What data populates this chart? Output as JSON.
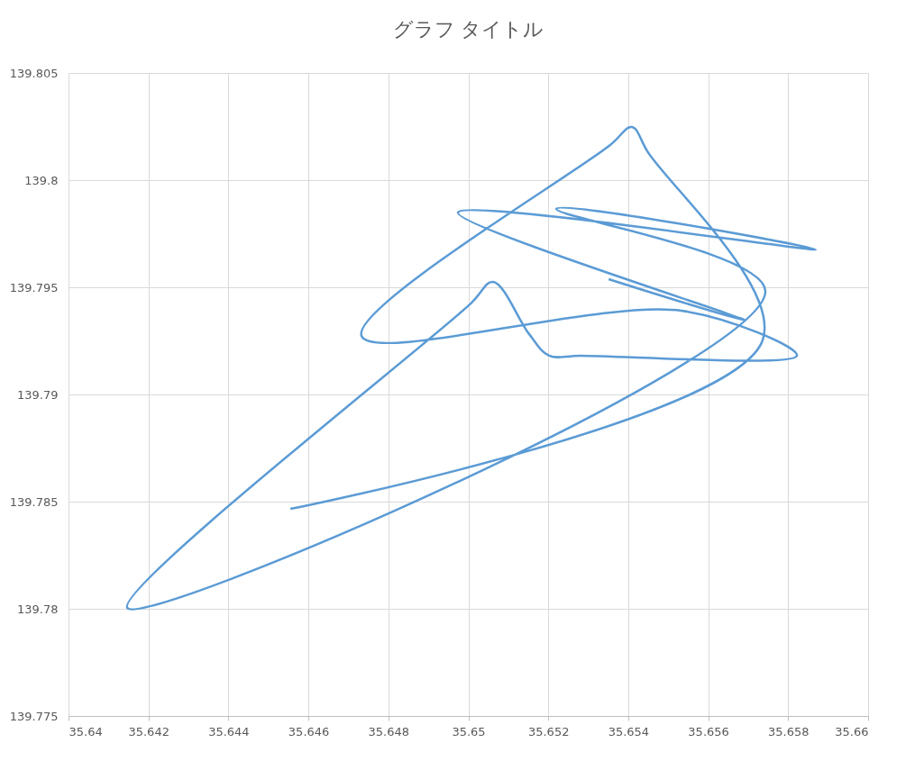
{
  "chart_data": {
    "type": "line",
    "title": "グラフ タイトル",
    "x": [
      35.64555,
      35.65736,
      35.65448,
      35.65409,
      35.65355,
      35.64733,
      35.65533,
      35.65822,
      35.65281,
      35.65202,
      35.65152,
      35.65062,
      35.65006,
      35.64147,
      35.65743,
      35.6522,
      35.65869,
      35.64974,
      35.65693,
      35.65351
    ],
    "series": [
      {
        "color": "#5b9bd5",
        "values": [
          139.78466,
          139.79252,
          139.80134,
          139.80248,
          139.80164,
          139.79273,
          139.79391,
          139.79181,
          139.79181,
          139.79181,
          139.79282,
          139.79525,
          139.79424,
          139.78004,
          139.79483,
          139.79866,
          139.79676,
          139.79849,
          139.79345,
          139.79538
        ]
      }
    ],
    "xlim": [
      35.64,
      35.66
    ],
    "xticks": [
      35.64,
      35.642,
      35.644,
      35.646,
      35.648,
      35.65,
      35.652,
      35.654,
      35.656,
      35.658,
      35.66
    ],
    "ylim": [
      139.775,
      139.805
    ],
    "yticks": [
      139.775,
      139.78,
      139.785,
      139.79,
      139.795,
      139.8,
      139.805
    ],
    "grid": true,
    "legend": false,
    "marker": "none",
    "line_style": "solid"
  }
}
